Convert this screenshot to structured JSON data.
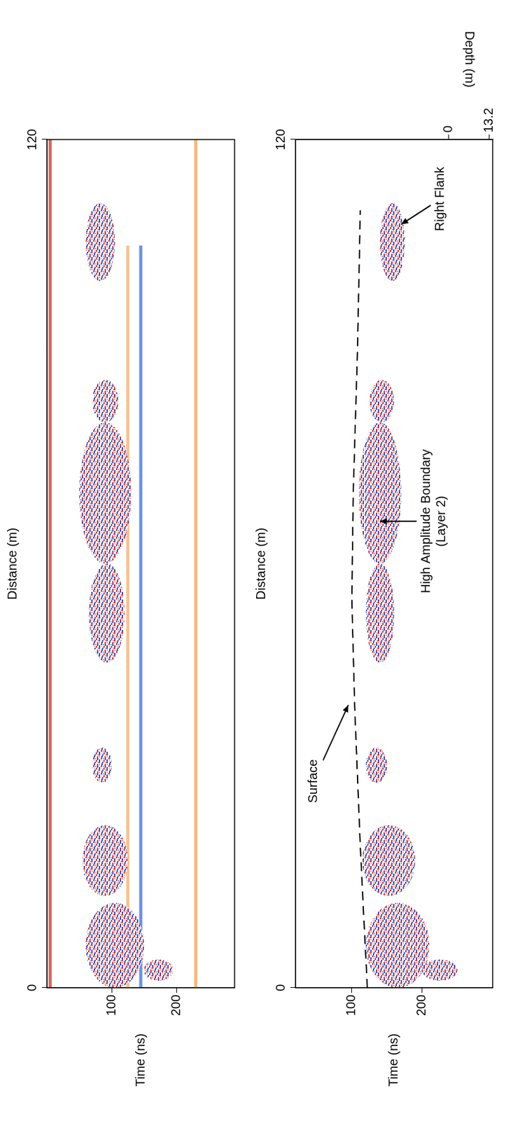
{
  "chart_data": [
    {
      "type": "scatter",
      "xlabel": "Distance (m)",
      "ylabel": "Time (ns)",
      "xlim": [
        0,
        120
      ],
      "xticks": [
        0,
        120
      ],
      "ylim": [
        0,
        290
      ],
      "yticks": [
        100,
        200
      ],
      "grid": false,
      "reflection_zones": [
        {
          "x": [
            0,
            12
          ],
          "time": [
            60,
            150
          ]
        },
        {
          "x": [
            13,
            23
          ],
          "time": [
            55,
            125
          ]
        },
        {
          "x": [
            1,
            4
          ],
          "time": [
            150,
            195
          ]
        },
        {
          "x": [
            29,
            34
          ],
          "time": [
            70,
            100
          ]
        },
        {
          "x": [
            46,
            60
          ],
          "time": [
            65,
            120
          ]
        },
        {
          "x": [
            60,
            80
          ],
          "time": [
            50,
            130
          ]
        },
        {
          "x": [
            80,
            86
          ],
          "time": [
            70,
            110
          ]
        },
        {
          "x": [
            100,
            111
          ],
          "time": [
            60,
            105
          ]
        }
      ],
      "bands": [
        {
          "time": 5,
          "x": [
            0,
            120
          ],
          "color": "#c0392b"
        },
        {
          "time": 125,
          "x": [
            0,
            105
          ],
          "color": "#f0b070"
        },
        {
          "time": 145,
          "x": [
            0,
            105
          ],
          "color": "#3b6fd6"
        },
        {
          "time": 230,
          "x": [
            0,
            120
          ],
          "color": "#f0a050"
        }
      ]
    },
    {
      "type": "scatter",
      "xlabel": "Distance (m)",
      "ylabel": "Time (ns)",
      "y2label": "Depth (m)",
      "xlim": [
        0,
        120
      ],
      "xticks": [
        0,
        120
      ],
      "ylim": [
        20,
        300
      ],
      "yticks": [
        100,
        200
      ],
      "y2lim": [
        -49.4,
        14.3
      ],
      "y2ticks": [
        0,
        13.2
      ],
      "grid": false,
      "series": [
        {
          "type": "line",
          "color": "#000000",
          "line_style": "dashed",
          "x": [
            0,
            20,
            40,
            55,
            70,
            90,
            110
          ],
          "values": [
            122,
            112,
            104,
            100,
            102,
            108,
            112
          ]
        }
      ],
      "reflection_zones": [
        {
          "x": [
            0,
            12
          ],
          "time": [
            120,
            210
          ]
        },
        {
          "x": [
            13,
            23
          ],
          "time": [
            115,
            190
          ]
        },
        {
          "x": [
            1,
            4
          ],
          "time": [
            200,
            250
          ]
        },
        {
          "x": [
            29,
            34
          ],
          "time": [
            120,
            150
          ]
        },
        {
          "x": [
            46,
            60
          ],
          "time": [
            120,
            160
          ]
        },
        {
          "x": [
            60,
            80
          ],
          "time": [
            110,
            170
          ]
        },
        {
          "x": [
            80,
            86
          ],
          "time": [
            125,
            160
          ]
        },
        {
          "x": [
            100,
            111
          ],
          "time": [
            140,
            175
          ]
        }
      ],
      "annotations": [
        {
          "text": [
            "Surface"
          ],
          "x": 40,
          "time": 95
        },
        {
          "text": [
            "High Amplitude Boundary",
            "(Layer 2)"
          ],
          "x": 66,
          "time": 140
        },
        {
          "text": [
            "Right Flank"
          ],
          "x": 108,
          "time": 170
        }
      ]
    }
  ]
}
